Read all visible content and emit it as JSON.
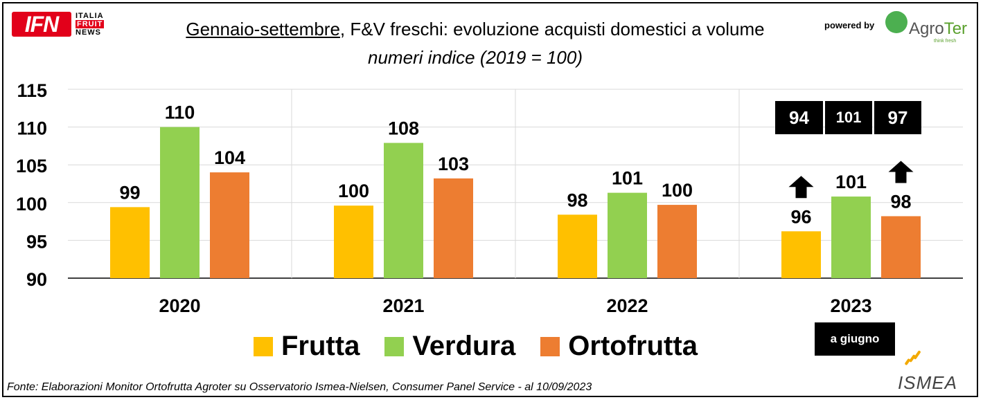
{
  "header": {
    "ifn_logo": {
      "letters": "IFN",
      "line1": "ITALIA",
      "line2": "FRUIT",
      "line3": "NEWS"
    },
    "title_underlined": "Gennaio-settembre",
    "title_rest": ", F&V freschi: evoluzione acquisti domestici a volume",
    "subtitle": "numeri indice (2019 = 100)",
    "powered_by": "powered by",
    "agroter_logo": {
      "word_a": "Agro",
      "word_b": "Ter",
      "tagline": "think fresh"
    }
  },
  "chart_data": {
    "type": "bar",
    "categories": [
      "2020",
      "2021",
      "2022",
      "2023"
    ],
    "series": [
      {
        "name": "Frutta",
        "color": "#ffc000",
        "values": [
          99.4,
          99.6,
          98.4,
          96.2
        ],
        "labels": [
          "99",
          "100",
          "98",
          "96"
        ]
      },
      {
        "name": "Verdura",
        "color": "#92d050",
        "values": [
          110.0,
          107.9,
          101.3,
          100.8
        ],
        "labels": [
          "110",
          "108",
          "101",
          "101"
        ]
      },
      {
        "name": "Ortofrutta",
        "color": "#ed7d31",
        "values": [
          104.0,
          103.2,
          99.7,
          98.2
        ],
        "labels": [
          "104",
          "103",
          "100",
          "98"
        ]
      }
    ],
    "yticks": [
      "90",
      "95",
      "100",
      "105",
      "110",
      "115"
    ],
    "ylim": [
      90,
      115
    ],
    "grid": true,
    "legend_position": "bottom",
    "annotations": {
      "comparison_values": [
        "94",
        "101",
        "97"
      ],
      "note_2023": "a giugno",
      "arrows_on": [
        "Frutta",
        "Ortofrutta"
      ]
    }
  },
  "footer": {
    "source": "Fonte: Elaborazioni Monitor Ortofrutta Agroter su Osservatorio Ismea-Nielsen, Consumer Panel Service - al 10/09/2023",
    "ismea_logo": "ISMEA"
  }
}
